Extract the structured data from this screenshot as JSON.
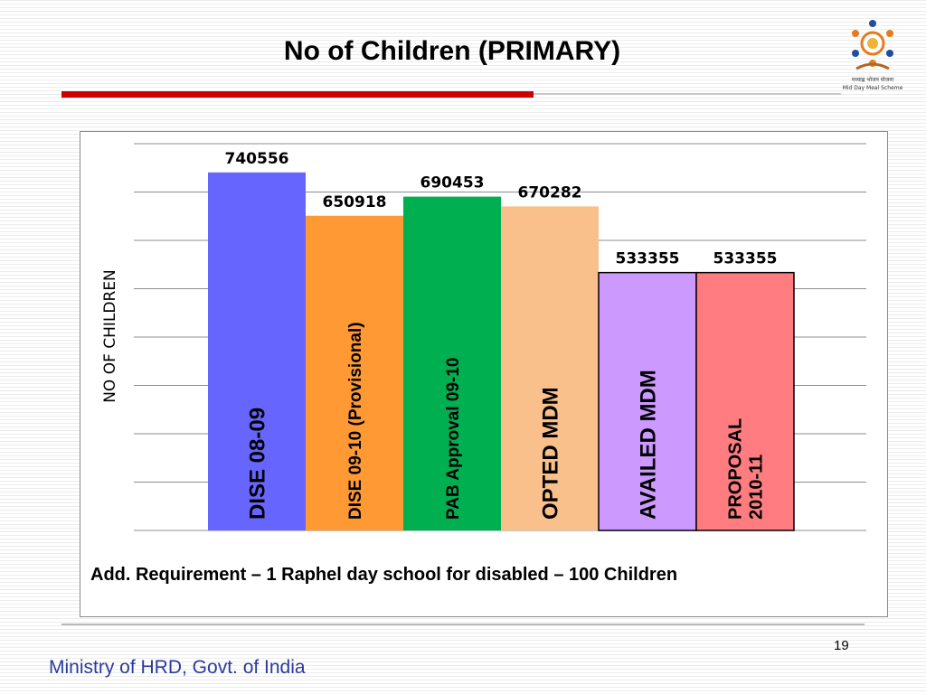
{
  "slide": {
    "title": "No of Children (PRIMARY)",
    "footnote": "Add. Requirement – 1 Raphel day school for disabled – 100 Children",
    "page_number": "19",
    "footer": "Ministry of HRD, Govt. of India",
    "logo": {
      "icon": "mid-day-meal-scheme-logo",
      "text_line1": "मध्याह्न भोजन योजना",
      "text_line2": "Mid Day Meal Scheme"
    }
  },
  "chart_data": {
    "type": "bar",
    "title": "",
    "xlabel": "",
    "ylabel": "NO OF CHILDREN",
    "ylim": [
      0,
      800000
    ],
    "grid": true,
    "categories": [
      "DISE 08-09",
      "DISE 09-10 (Provisional)",
      "PAB Approval  09-10",
      "OPTED  MDM",
      "AVAILED  MDM",
      "PROPOSAL 2010-11"
    ],
    "values": [
      740556,
      650918,
      690453,
      670282,
      533355,
      533355
    ],
    "data_labels": [
      "740556",
      "650918",
      "690453",
      "670282",
      "533355",
      "533355"
    ],
    "bar_labels": [
      [
        "DISE 08-09"
      ],
      [
        "DISE 09-10 (Provisional)"
      ],
      [
        "PAB Approval  09-10"
      ],
      [
        "OPTED  MDM"
      ],
      [
        "AVAILED  MDM"
      ],
      [
        "PROPOSAL",
        "2010-11"
      ]
    ],
    "colors": [
      "#6666ff",
      "#ff9933",
      "#00b050",
      "#f9c08c",
      "#cc99ff",
      "#ff7c80"
    ],
    "bordered": [
      false,
      false,
      false,
      false,
      true,
      true
    ]
  }
}
